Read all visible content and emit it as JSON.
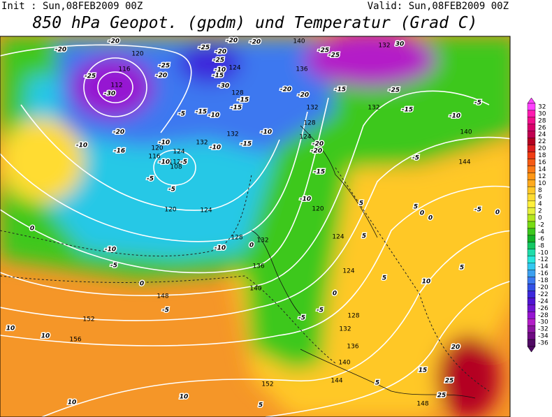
{
  "header": {
    "init": "Init : Sun,08FEB2009 00Z",
    "valid": "Valid: Sun,08FEB2009 00Z",
    "title": "850 hPa Geopot. (gpdm) und Temperatur (Grad C)"
  },
  "colorbar": {
    "ticks": [
      32,
      30,
      28,
      26,
      24,
      22,
      20,
      18,
      16,
      14,
      12,
      10,
      8,
      6,
      4,
      2,
      0,
      -2,
      -4,
      -6,
      -8,
      -10,
      -12,
      -14,
      -16,
      -18,
      -20,
      -22,
      -24,
      -26,
      -28,
      -30,
      -32,
      -34,
      -36
    ],
    "colors": [
      "#ff40ff",
      "#ff1ab0",
      "#f0108a",
      "#d8006a",
      "#c00050",
      "#b40020",
      "#dc1e1e",
      "#f03c14",
      "#f55a14",
      "#fa7814",
      "#ff9614",
      "#ffaa1e",
      "#ffc828",
      "#ffdc32",
      "#fff03c",
      "#e6f03c",
      "#b4e61e",
      "#78dc14",
      "#3cc81e",
      "#14b428",
      "#14c864",
      "#1edcaa",
      "#28e6dc",
      "#32c8f0",
      "#3ca0f0",
      "#3c78f0",
      "#3250e6",
      "#3c28dc",
      "#5014d2",
      "#6e14d2",
      "#9614d2",
      "#b41ec8",
      "#8c14a0",
      "#6e0a82",
      "#500a64"
    ]
  },
  "map": {
    "geopotential_labels": [
      120,
      116,
      112,
      124,
      128,
      136,
      140,
      132,
      132,
      128,
      124,
      132,
      132,
      120,
      124,
      116,
      112,
      108,
      120,
      124,
      128,
      132,
      136,
      140,
      148,
      152,
      156,
      120,
      124,
      124,
      128,
      132,
      136,
      140,
      144,
      152,
      148,
      144,
      140,
      132
    ],
    "temperature_labels": [
      -20,
      -20,
      -25,
      -30,
      -20,
      -10,
      -16,
      -25,
      -20,
      -25,
      -20,
      -20,
      -25,
      -10,
      -15,
      -30,
      -15,
      -15,
      -5,
      -15,
      -10,
      -10,
      -10,
      -10,
      -5,
      -5,
      -5,
      -15,
      -10,
      -10,
      -20,
      -25,
      -25,
      -20,
      -20,
      -15,
      -25,
      -15,
      -10,
      -5,
      -5,
      -20,
      -20,
      -15,
      -10,
      0,
      0,
      -10,
      -5,
      -5,
      0,
      -5,
      -5,
      -5,
      0,
      5,
      10,
      5,
      0,
      5,
      0,
      0,
      10,
      10,
      10,
      10,
      5,
      5,
      15,
      20,
      25,
      25,
      30,
      5,
      5
    ]
  }
}
